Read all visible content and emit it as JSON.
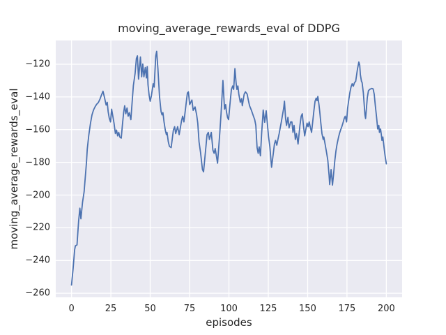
{
  "chart_data": {
    "type": "line",
    "title": "moving_average_rewards_eval of DDPG",
    "xlabel": "episodes",
    "ylabel": "moving_average_rewards_eval",
    "legend": null,
    "grid": true,
    "style": "seaborn-darkgrid",
    "plot_bg": "#eaeaf2",
    "grid_color": "#ffffff",
    "line_color": "#4c72b0",
    "text_color": "#262626",
    "xticks": [
      0,
      25,
      50,
      75,
      100,
      125,
      150,
      175,
      200
    ],
    "yticks": [
      -120,
      -140,
      -160,
      -180,
      -200,
      -220,
      -240,
      -260
    ],
    "xlim": [
      -10,
      210
    ],
    "ylim": [
      -262.5,
      -105.5
    ],
    "series": [
      {
        "name": "moving_average_rewards_eval",
        "points": [
          [
            0,
            -255
          ],
          [
            1,
            -245
          ],
          [
            2,
            -233.5
          ],
          [
            2.5,
            -231
          ],
          [
            3.5,
            -230.5
          ],
          [
            4.5,
            -216
          ],
          [
            5.3,
            -208
          ],
          [
            6,
            -214.5
          ],
          [
            7,
            -204.5
          ],
          [
            8,
            -198
          ],
          [
            8.7,
            -190
          ],
          [
            9.5,
            -180
          ],
          [
            10,
            -172
          ],
          [
            11,
            -163.5
          ],
          [
            12,
            -156.5
          ],
          [
            13,
            -151
          ],
          [
            14,
            -148
          ],
          [
            15,
            -146
          ],
          [
            16,
            -144.5
          ],
          [
            17,
            -143.5
          ],
          [
            18,
            -141.5
          ],
          [
            19,
            -139
          ],
          [
            20,
            -136.5
          ],
          [
            21,
            -140.5
          ],
          [
            22,
            -145
          ],
          [
            22.7,
            -143.3
          ],
          [
            23.3,
            -149
          ],
          [
            24,
            -153
          ],
          [
            24.8,
            -155.3
          ],
          [
            25.5,
            -147.5
          ],
          [
            26.3,
            -152
          ],
          [
            27,
            -156
          ],
          [
            27.9,
            -162.4
          ],
          [
            28.6,
            -160.3
          ],
          [
            29.3,
            -163.8
          ],
          [
            30,
            -161.7
          ],
          [
            30.7,
            -164.5
          ],
          [
            31.6,
            -165.2
          ],
          [
            32.3,
            -157.4
          ],
          [
            33.1,
            -149.6
          ],
          [
            33.8,
            -145.4
          ],
          [
            34.5,
            -150.3
          ],
          [
            35.3,
            -146.8
          ],
          [
            36,
            -151.8
          ],
          [
            36.7,
            -149.6
          ],
          [
            37.7,
            -153.9
          ],
          [
            38.5,
            -143.3
          ],
          [
            39.3,
            -133
          ],
          [
            40.4,
            -125.5
          ],
          [
            41.2,
            -116.5
          ],
          [
            41.9,
            -114.9
          ],
          [
            42.6,
            -129.1
          ],
          [
            43.8,
            -115.6
          ],
          [
            44.6,
            -127.7
          ],
          [
            45.3,
            -119.9
          ],
          [
            46,
            -127.7
          ],
          [
            46.9,
            -122
          ],
          [
            47.6,
            -128.4
          ],
          [
            48.1,
            -121.5
          ],
          [
            48.6,
            -132.6
          ],
          [
            49.3,
            -139
          ],
          [
            50,
            -142.6
          ],
          [
            50.7,
            -139.7
          ],
          [
            51.9,
            -131.9
          ],
          [
            52.5,
            -134
          ],
          [
            53.5,
            -115
          ],
          [
            54.1,
            -112.1
          ],
          [
            54.9,
            -122.7
          ],
          [
            55.9,
            -139.7
          ],
          [
            56.9,
            -148.9
          ],
          [
            57.5,
            -151
          ],
          [
            58.1,
            -149.6
          ],
          [
            58.8,
            -155.3
          ],
          [
            59.6,
            -160.3
          ],
          [
            60.3,
            -163.1
          ],
          [
            60.7,
            -161.7
          ],
          [
            61.5,
            -167.4
          ],
          [
            62.2,
            -170.2
          ],
          [
            63.3,
            -171
          ],
          [
            64.7,
            -160.3
          ],
          [
            65.5,
            -158.2
          ],
          [
            66.2,
            -162.4
          ],
          [
            67.4,
            -158.2
          ],
          [
            68.4,
            -163.1
          ],
          [
            69.9,
            -154.6
          ],
          [
            70.6,
            -151.8
          ],
          [
            71.4,
            -155.3
          ],
          [
            72.5,
            -146.5
          ],
          [
            73.6,
            -137.6
          ],
          [
            74.3,
            -136.9
          ],
          [
            75.1,
            -144.7
          ],
          [
            76.5,
            -141.9
          ],
          [
            77.3,
            -148.2
          ],
          [
            78.5,
            -146.1
          ],
          [
            79.5,
            -151
          ],
          [
            80.2,
            -156
          ],
          [
            81,
            -167.4
          ],
          [
            82,
            -174
          ],
          [
            83.2,
            -184.4
          ],
          [
            83.9,
            -185.8
          ],
          [
            85,
            -174.5
          ],
          [
            86.1,
            -163.1
          ],
          [
            86.9,
            -161.7
          ],
          [
            87.6,
            -166
          ],
          [
            88.8,
            -161.7
          ],
          [
            89.8,
            -172.5
          ],
          [
            90.6,
            -174.5
          ],
          [
            91.3,
            -171.6
          ],
          [
            92.8,
            -180.5
          ],
          [
            94.2,
            -162
          ],
          [
            95,
            -150.3
          ],
          [
            96.2,
            -130
          ],
          [
            97.2,
            -147.5
          ],
          [
            97.9,
            -144.7
          ],
          [
            98.4,
            -148.9
          ],
          [
            99.1,
            -152.5
          ],
          [
            99.8,
            -153.9
          ],
          [
            100.9,
            -142
          ],
          [
            101.6,
            -135.4
          ],
          [
            102.4,
            -133.3
          ],
          [
            103,
            -135.4
          ],
          [
            103.8,
            -122.7
          ],
          [
            104.6,
            -131.9
          ],
          [
            105.1,
            -135.4
          ],
          [
            105.7,
            -133.3
          ],
          [
            106.3,
            -138.3
          ],
          [
            107.2,
            -143.3
          ],
          [
            108,
            -141.1
          ],
          [
            108.5,
            -145.4
          ],
          [
            109.7,
            -138.3
          ],
          [
            110.5,
            -136.9
          ],
          [
            111.6,
            -138.3
          ],
          [
            112.3,
            -141.9
          ],
          [
            113.1,
            -145.4
          ],
          [
            114.2,
            -148
          ],
          [
            115.6,
            -151.8
          ],
          [
            116.4,
            -153.9
          ],
          [
            117.1,
            -157.4
          ],
          [
            117.9,
            -171
          ],
          [
            118.6,
            -174.5
          ],
          [
            119.2,
            -170.5
          ],
          [
            120,
            -176
          ],
          [
            120.8,
            -162
          ],
          [
            121.8,
            -148
          ],
          [
            122.7,
            -155.5
          ],
          [
            123.7,
            -148.5
          ],
          [
            124.8,
            -160.3
          ],
          [
            125.2,
            -164.5
          ],
          [
            126,
            -170.2
          ],
          [
            127.1,
            -183
          ],
          [
            128.2,
            -174.5
          ],
          [
            128.9,
            -168.8
          ],
          [
            129.6,
            -166.6
          ],
          [
            130.4,
            -169.5
          ],
          [
            131.1,
            -166
          ],
          [
            131.9,
            -162.4
          ],
          [
            132.6,
            -158.9
          ],
          [
            133.3,
            -155.3
          ],
          [
            134.8,
            -146.8
          ],
          [
            135.3,
            -142.6
          ],
          [
            136,
            -153.2
          ],
          [
            136.6,
            -157.4
          ],
          [
            137.5,
            -152.5
          ],
          [
            138.2,
            -158.9
          ],
          [
            139.2,
            -155.3
          ],
          [
            140,
            -155.3
          ],
          [
            140.7,
            -161.7
          ],
          [
            141.4,
            -157.4
          ],
          [
            142.2,
            -166
          ],
          [
            142.9,
            -162.4
          ],
          [
            143.9,
            -168.8
          ],
          [
            145.1,
            -157.4
          ],
          [
            145.9,
            -151.8
          ],
          [
            146.6,
            -150.3
          ],
          [
            147.3,
            -157.4
          ],
          [
            148.1,
            -163.8
          ],
          [
            148.8,
            -160.3
          ],
          [
            149.6,
            -156
          ],
          [
            150.3,
            -158.2
          ],
          [
            151,
            -155.3
          ],
          [
            151.8,
            -158.9
          ],
          [
            152.5,
            -161.7
          ],
          [
            154,
            -148.2
          ],
          [
            154.7,
            -142.6
          ],
          [
            155.4,
            -140.7
          ],
          [
            156,
            -142.3
          ],
          [
            156.5,
            -139.7
          ],
          [
            157.2,
            -144.7
          ],
          [
            157.7,
            -148.9
          ],
          [
            158.4,
            -156
          ],
          [
            159.1,
            -162.4
          ],
          [
            159.9,
            -166
          ],
          [
            160.3,
            -164.5
          ],
          [
            161.1,
            -168.8
          ],
          [
            162.1,
            -174.5
          ],
          [
            162.8,
            -178.7
          ],
          [
            163.6,
            -187.9
          ],
          [
            164,
            -193.6
          ],
          [
            164.9,
            -184.4
          ],
          [
            165.8,
            -193.9
          ],
          [
            166.5,
            -187.2
          ],
          [
            167.3,
            -178.7
          ],
          [
            168,
            -173
          ],
          [
            168.7,
            -168.8
          ],
          [
            169.5,
            -165.2
          ],
          [
            170.2,
            -162.4
          ],
          [
            170.9,
            -160.3
          ],
          [
            171.7,
            -158.2
          ],
          [
            172.4,
            -156
          ],
          [
            173.2,
            -153.2
          ],
          [
            173.9,
            -151.8
          ],
          [
            174.7,
            -155.3
          ],
          [
            175.4,
            -147
          ],
          [
            176.1,
            -142
          ],
          [
            176.8,
            -137.5
          ],
          [
            177.6,
            -133.8
          ],
          [
            178.3,
            -131.9
          ],
          [
            179,
            -133.5
          ],
          [
            179.8,
            -131.2
          ],
          [
            180.5,
            -130.5
          ],
          [
            181.6,
            -123.4
          ],
          [
            182.5,
            -118.7
          ],
          [
            183.1,
            -120.6
          ],
          [
            183.5,
            -126.3
          ],
          [
            184.2,
            -130.5
          ],
          [
            184.6,
            -131.2
          ],
          [
            185.4,
            -137.6
          ],
          [
            186.4,
            -151
          ],
          [
            186.8,
            -153.2
          ],
          [
            187.9,
            -140.4
          ],
          [
            188.6,
            -136.2
          ],
          [
            189.4,
            -135.4
          ],
          [
            190.8,
            -134.8
          ],
          [
            191.6,
            -135.1
          ],
          [
            192.3,
            -138.3
          ],
          [
            193,
            -145.4
          ],
          [
            193.8,
            -152.5
          ],
          [
            194.5,
            -159.6
          ],
          [
            195.2,
            -157.4
          ],
          [
            195.6,
            -161.7
          ],
          [
            196.3,
            -159.6
          ],
          [
            196.8,
            -163.1
          ],
          [
            197.2,
            -166.6
          ],
          [
            197.8,
            -164.5
          ],
          [
            198.7,
            -172.3
          ],
          [
            199.3,
            -176.6
          ],
          [
            200,
            -180.9
          ]
        ]
      }
    ]
  }
}
